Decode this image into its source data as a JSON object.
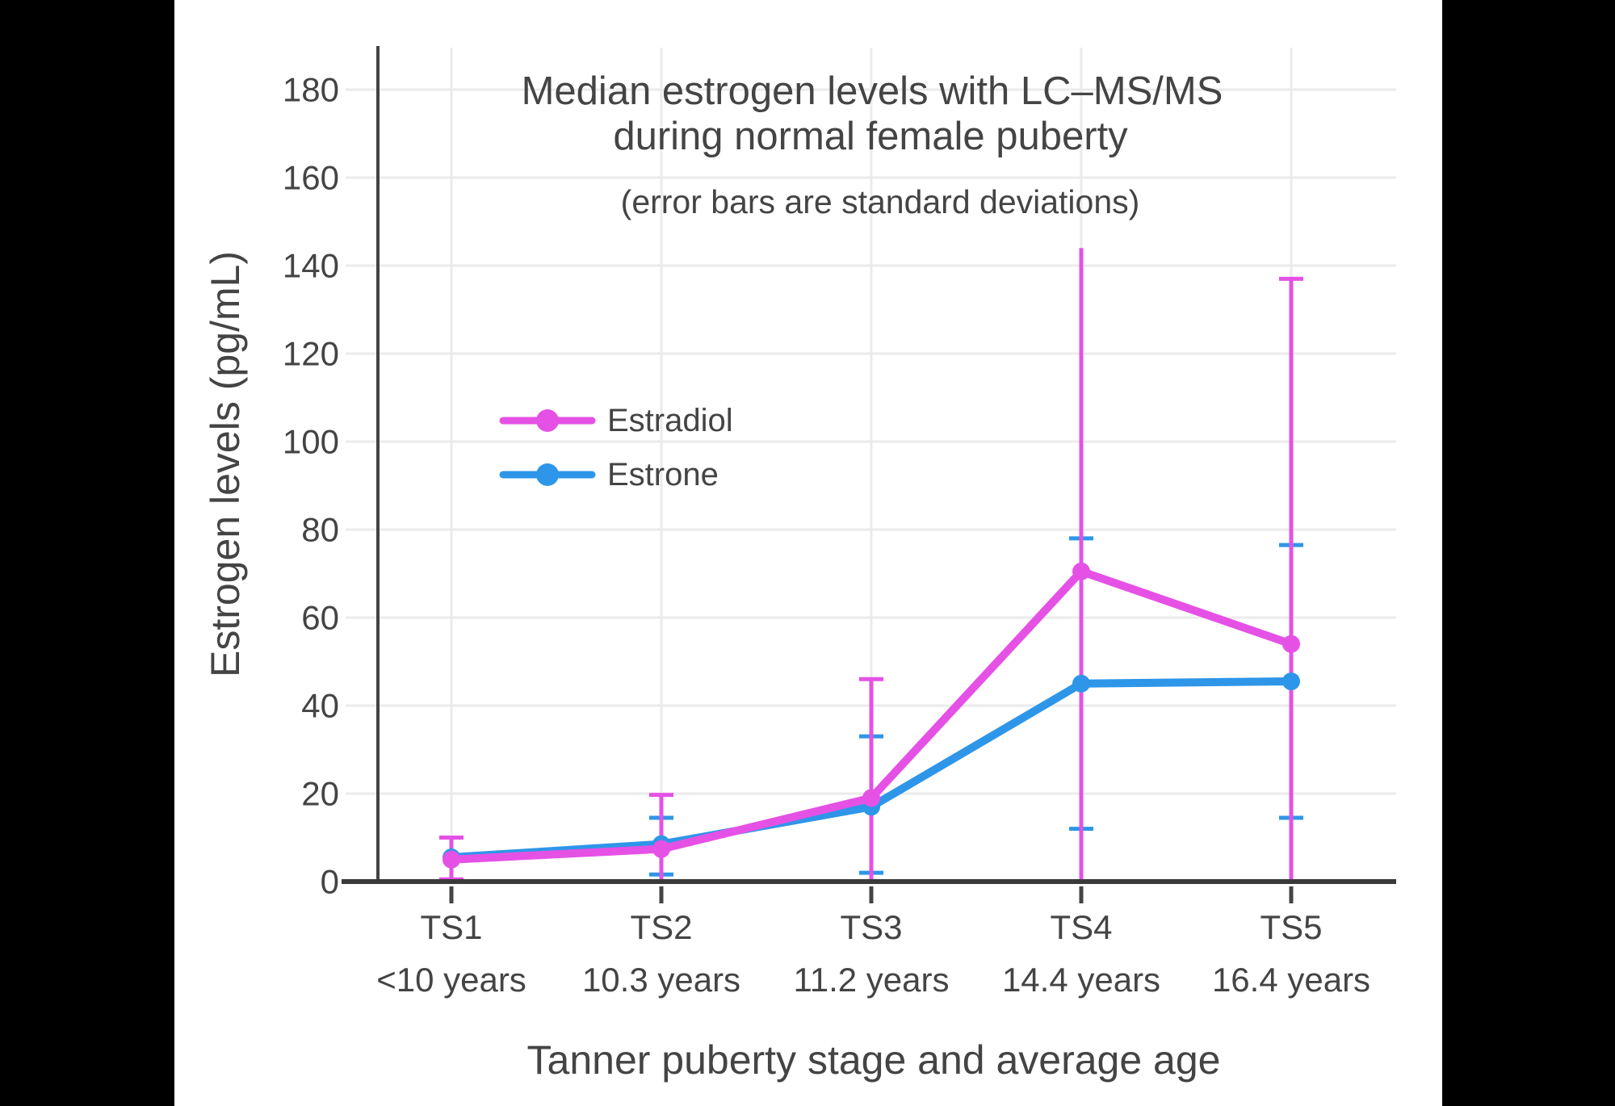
{
  "page": {
    "background_color": "#000000",
    "canvas_color": "#FFFFFF"
  },
  "colors": {
    "text": "#444444",
    "grid": "#EBEBEB",
    "x_axis_line": "#3A3A3A",
    "y_axis_line": "#444444",
    "x_tick_mark": "#444444"
  },
  "chart_data": {
    "type": "line",
    "title": "Median estrogen levels with LC–MS/MS",
    "title_line2": "during normal female puberty",
    "subtitle": "(error bars are standard deviations)",
    "xlabel": "Tanner puberty stage and average age",
    "ylabel": "Estrogen levels (pg/mL)",
    "y_unit": "pg/mL",
    "categories": [
      "TS1",
      "TS2",
      "TS3",
      "TS4",
      "TS5"
    ],
    "category_ages": [
      "<10 years",
      "10.3 years",
      "11.2 years",
      "14.4 years",
      "16.4 years"
    ],
    "yticks": [
      0,
      20,
      40,
      60,
      80,
      100,
      120,
      140,
      160,
      180
    ],
    "ylim": [
      0,
      190
    ],
    "grid": true,
    "legend_position": "inside-upper-left",
    "series": [
      {
        "name": "Estradiol",
        "color": "#E551E5",
        "values": [
          5,
          7.4,
          19,
          70.5,
          54
        ],
        "err_low": [
          0.5,
          0,
          0,
          0,
          0
        ],
        "err_high": [
          10,
          19.7,
          46,
          144,
          137
        ],
        "cap_top": [
          true,
          true,
          true,
          false,
          true
        ],
        "cap_bottom": [
          true,
          true,
          true,
          true,
          true
        ]
      },
      {
        "name": "Estrone",
        "color": "#2E96E8",
        "values": [
          5.5,
          8.5,
          17,
          45,
          45.5
        ],
        "err_low": [
          null,
          1.6,
          2,
          12,
          14.5
        ],
        "err_high": [
          null,
          14.5,
          33,
          78,
          76.5
        ],
        "cap_top": [
          false,
          true,
          true,
          true,
          true
        ],
        "cap_bottom": [
          false,
          true,
          true,
          true,
          true
        ]
      }
    ]
  }
}
